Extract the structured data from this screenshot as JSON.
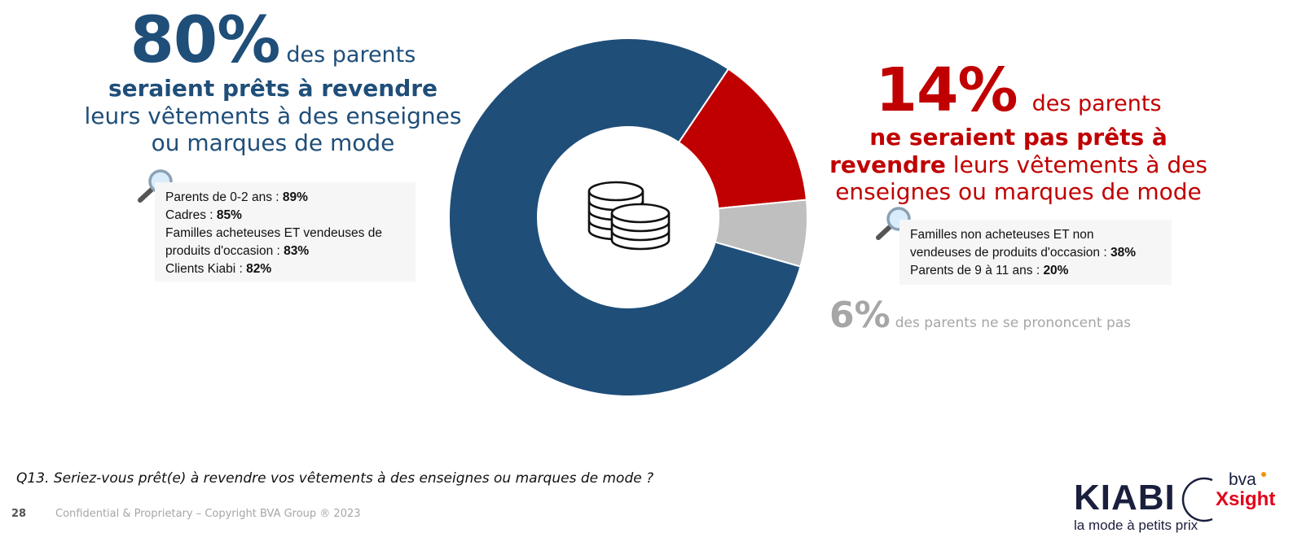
{
  "left": {
    "percent": "80%",
    "suffix": "des parents",
    "bold_line": "seraient prêts à revendre",
    "line2": "leurs vêtements à des enseignes",
    "line3": "ou marques de mode",
    "notes": [
      {
        "label": "Parents de 0-2 ans : ",
        "value": "89%"
      },
      {
        "label": "Cadres : ",
        "value": "85%"
      },
      {
        "label": "Familles acheteuses ET vendeuses de",
        "value": ""
      },
      {
        "label": "produits d'occasion : ",
        "value": "83%"
      },
      {
        "label": "Clients Kiabi : ",
        "value": "82%"
      }
    ]
  },
  "right": {
    "percent": "14%",
    "suffix": "des parents",
    "bold_line1": "ne seraient pas prêts à",
    "bold_word": "revendre",
    "line2_rest": " leurs vêtements à des",
    "line3": "enseignes ou marques de mode",
    "notes": [
      {
        "label": "Familles non acheteuses ET non",
        "value": ""
      },
      {
        "label": "vendeuses de produits d'occasion : ",
        "value": "38%"
      },
      {
        "label": "Parents de 9 à 11 ans : ",
        "value": "20%"
      }
    ]
  },
  "neutral": {
    "percent": "6%",
    "text": "des parents ne se prononcent pas"
  },
  "question": "Q13. Seriez-vous prêt(e) à revendre vos vêtements à des enseignes ou marques de mode ?",
  "page_number": "28",
  "footer": "Confidential & Proprietary – Copyright BVA Group ®  2023",
  "logos": {
    "kiabi": "KIABI",
    "kiabi_tagline": "la mode à petits prix",
    "bva": "bva",
    "xsight": "Xsight"
  },
  "icons": [
    "magnifier-icon",
    "coins-icon"
  ],
  "colors": {
    "blue": "#1f4e79",
    "red": "#c00000",
    "gray": "#bfbfbf"
  },
  "chart_data": {
    "type": "pie",
    "variant": "donut",
    "categories": [
      "Prêts à revendre",
      "Pas prêts à revendre",
      "Ne se prononcent pas"
    ],
    "values": [
      80,
      14,
      6
    ],
    "colors": [
      "#1f4e79",
      "#c00000",
      "#bfbfbf"
    ]
  }
}
